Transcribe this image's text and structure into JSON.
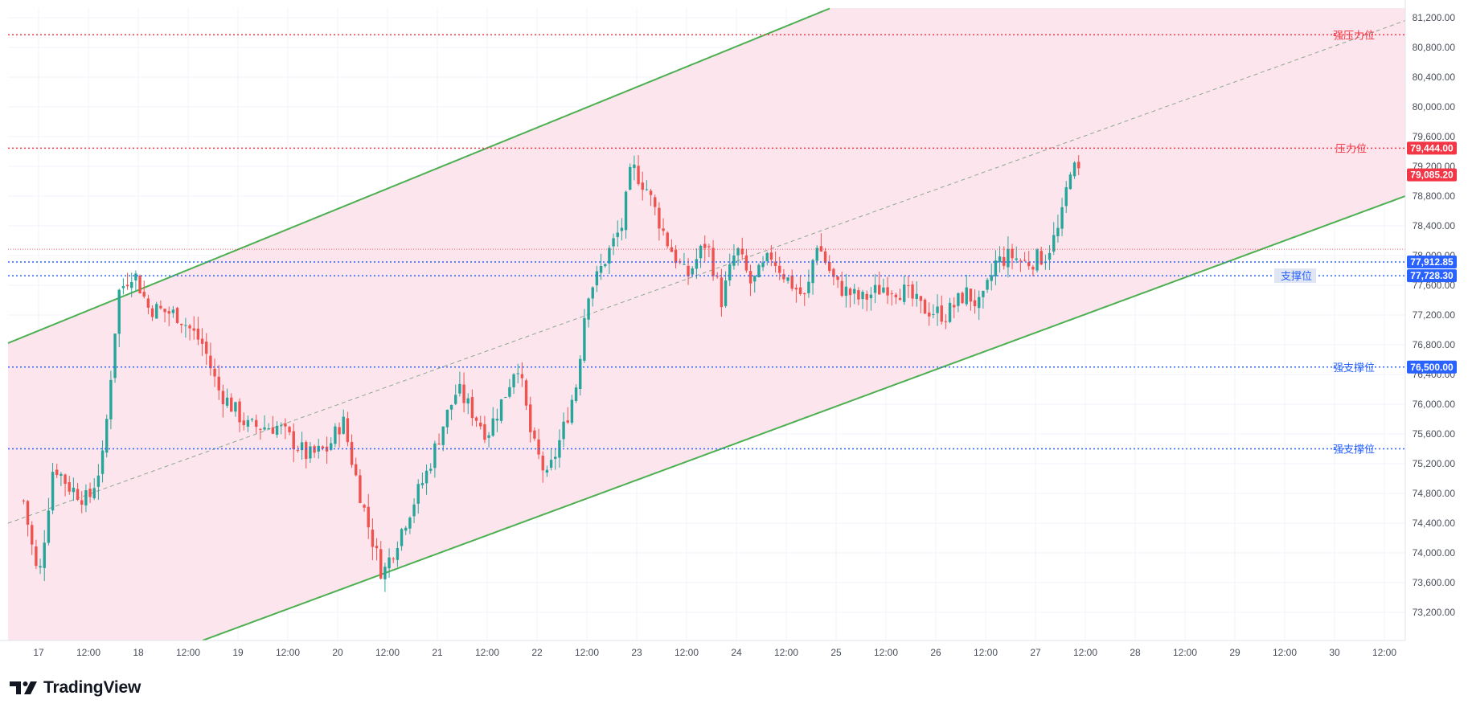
{
  "brand": {
    "name": "TradingView",
    "logo_icon": "tradingview-logo-icon"
  },
  "colors": {
    "channel_line": "#4caf50",
    "channel_fill": "#fce4ec",
    "resistance": "#f23645",
    "support": "#2962ff",
    "candle_up": "#26a69a",
    "candle_down": "#ef5350",
    "last_price": "#f23645"
  },
  "chart_data": {
    "type": "candlestick",
    "title": "",
    "ylim": [
      72800,
      81400
    ],
    "y_ticks": [
      "73,200.00",
      "73,600.00",
      "74,000.00",
      "74,400.00",
      "74,800.00",
      "75,200.00",
      "75,600.00",
      "76,000.00",
      "76,400.00",
      "76,800.00",
      "77,200.00",
      "77,600.00",
      "78,000.00",
      "78,400.00",
      "78,800.00",
      "79,200.00",
      "79,600.00",
      "80,000.00",
      "80,400.00",
      "80,800.00",
      "81,200.00"
    ],
    "x_ticks": [
      "17",
      "12:00",
      "18",
      "12:00",
      "19",
      "12:00",
      "20",
      "12:00",
      "21",
      "12:00",
      "22",
      "12:00",
      "23",
      "12:00",
      "24",
      "12:00",
      "25",
      "12:00",
      "26",
      "12:00",
      "27",
      "12:00",
      "28",
      "12:00",
      "29",
      "12:00",
      "30",
      "12:00"
    ],
    "horizontal_levels": [
      {
        "label": "强压力位",
        "price": 80970,
        "color": "#f23645",
        "badge": ""
      },
      {
        "label": "压力位",
        "price": 79444,
        "color": "#f23645",
        "badge": "79,444.00"
      },
      {
        "label": "",
        "price": 78085.2,
        "color": "#f23645",
        "badge": ""
      },
      {
        "label": "",
        "price": 77912.85,
        "color": "#2962ff",
        "badge": "77,912.85"
      },
      {
        "label": "支撑位",
        "price": 77728.3,
        "color": "#2962ff",
        "badge": "77,728.30"
      },
      {
        "label": "强支撑位",
        "price": 76500,
        "color": "#2962ff",
        "badge": "76,500.00"
      },
      {
        "label": "强支撑位",
        "price": 75400,
        "color": "#2962ff",
        "badge": ""
      }
    ],
    "last_price": {
      "price": 79085.2,
      "badge": "79,085.20"
    },
    "channel": {
      "upper": [
        {
          "day": 16.8,
          "price": 76880
        },
        {
          "day": 26.1,
          "price": 81960
        }
      ],
      "lower": [
        {
          "day": 18.5,
          "price": 72750
        },
        {
          "day": 30.75,
          "price": 78820
        }
      ],
      "mid": [
        {
          "day": 16.8,
          "price": 74450
        },
        {
          "day": 30.75,
          "price": 81180
        }
      ]
    },
    "ohlc_keypoints": [
      {
        "day": 16.85,
        "close": 74700
      },
      {
        "day": 17.0,
        "close": 73600
      },
      {
        "day": 17.15,
        "close": 75200
      },
      {
        "day": 17.3,
        "close": 74900
      },
      {
        "day": 17.5,
        "close": 74700
      },
      {
        "day": 17.65,
        "close": 75300
      },
      {
        "day": 17.8,
        "close": 77500
      },
      {
        "day": 17.95,
        "close": 77800
      },
      {
        "day": 18.1,
        "close": 77300
      },
      {
        "day": 18.4,
        "close": 77200
      },
      {
        "day": 18.65,
        "close": 76800
      },
      {
        "day": 18.8,
        "close": 76200
      },
      {
        "day": 19.1,
        "close": 75700
      },
      {
        "day": 19.4,
        "close": 75700
      },
      {
        "day": 19.7,
        "close": 75300
      },
      {
        "day": 19.9,
        "close": 75400
      },
      {
        "day": 20.05,
        "close": 75800
      },
      {
        "day": 20.15,
        "close": 75200
      },
      {
        "day": 20.3,
        "close": 74400
      },
      {
        "day": 20.45,
        "close": 73700
      },
      {
        "day": 20.7,
        "close": 74500
      },
      {
        "day": 20.9,
        "close": 75100
      },
      {
        "day": 21.05,
        "close": 75700
      },
      {
        "day": 21.2,
        "close": 76200
      },
      {
        "day": 21.35,
        "close": 75900
      },
      {
        "day": 21.5,
        "close": 75600
      },
      {
        "day": 21.7,
        "close": 76200
      },
      {
        "day": 21.8,
        "close": 76600
      },
      {
        "day": 21.95,
        "close": 75500
      },
      {
        "day": 22.1,
        "close": 75000
      },
      {
        "day": 22.25,
        "close": 75600
      },
      {
        "day": 22.4,
        "close": 76300
      },
      {
        "day": 22.5,
        "close": 77500
      },
      {
        "day": 22.6,
        "close": 77700
      },
      {
        "day": 22.7,
        "close": 78000
      },
      {
        "day": 22.85,
        "close": 78400
      },
      {
        "day": 22.95,
        "close": 79200
      },
      {
        "day": 23.1,
        "close": 78900
      },
      {
        "day": 23.3,
        "close": 78200
      },
      {
        "day": 23.5,
        "close": 77700
      },
      {
        "day": 23.7,
        "close": 78200
      },
      {
        "day": 23.85,
        "close": 77400
      },
      {
        "day": 24.0,
        "close": 78100
      },
      {
        "day": 24.15,
        "close": 77600
      },
      {
        "day": 24.35,
        "close": 78000
      },
      {
        "day": 24.5,
        "close": 77700
      },
      {
        "day": 24.7,
        "close": 77400
      },
      {
        "day": 24.8,
        "close": 78200
      },
      {
        "day": 25.0,
        "close": 77600
      },
      {
        "day": 25.25,
        "close": 77400
      },
      {
        "day": 25.5,
        "close": 77600
      },
      {
        "day": 25.7,
        "close": 77500
      },
      {
        "day": 25.85,
        "close": 77300
      },
      {
        "day": 26.1,
        "close": 77200
      },
      {
        "day": 26.3,
        "close": 77500
      },
      {
        "day": 26.45,
        "close": 77300
      },
      {
        "day": 26.6,
        "close": 77900
      },
      {
        "day": 26.75,
        "close": 78000
      },
      {
        "day": 26.9,
        "close": 77900
      },
      {
        "day": 27.1,
        "close": 78000
      },
      {
        "day": 27.25,
        "close": 78400
      },
      {
        "day": 27.35,
        "close": 79200
      },
      {
        "day": 27.45,
        "close": 79085
      }
    ]
  }
}
